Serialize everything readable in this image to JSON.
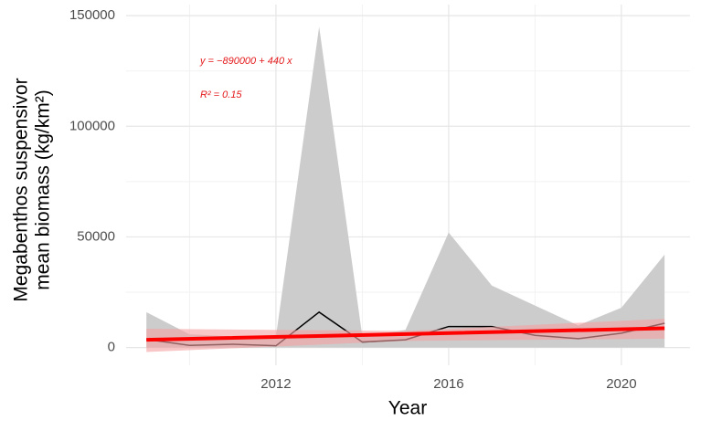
{
  "chart_data": {
    "type": "line",
    "x_label": "Year",
    "y_label": [
      "Megabenthos suspensivor",
      "mean biomass (kg/km²)"
    ],
    "annotations": [
      "y = −890000 + 440 x",
      "R² = 0.15"
    ],
    "x": [
      2009,
      2010,
      2011,
      2012,
      2013,
      2014,
      2015,
      2016,
      2017,
      2018,
      2019,
      2020,
      2021
    ],
    "band": {
      "color": "#cccccc",
      "upper": [
        16000,
        6000,
        5000,
        5000,
        145000,
        5000,
        8000,
        52000,
        28000,
        19000,
        10000,
        18000,
        42000
      ],
      "lower": [
        0,
        0,
        0,
        0,
        0,
        0,
        0,
        0,
        0,
        0,
        0,
        0,
        0
      ]
    },
    "series": [
      {
        "color": "#000000",
        "values": [
          3700,
          1000,
          1500,
          800,
          16000,
          2500,
          3500,
          9500,
          9500,
          5500,
          4000,
          6500,
          11000
        ]
      }
    ],
    "trend": {
      "color": "#ff0000",
      "band_color": "#f4a0a0",
      "x": [
        2009,
        2015,
        2021
      ],
      "values": [
        3500,
        6100,
        8700
      ],
      "lower": [
        -2000,
        3000,
        4000
      ],
      "upper": [
        8500,
        7500,
        13000
      ]
    },
    "xlim": [
      2008.53,
      2021.59
    ],
    "ylim": [
      -8000,
      155000
    ],
    "xticks": [
      2012,
      2016,
      2020
    ],
    "yticks": [
      0,
      50000,
      100000,
      150000
    ],
    "xminorticks": [
      2010,
      2014,
      2018
    ],
    "yminorticks": [
      25000,
      75000,
      125000
    ],
    "grid": true
  }
}
